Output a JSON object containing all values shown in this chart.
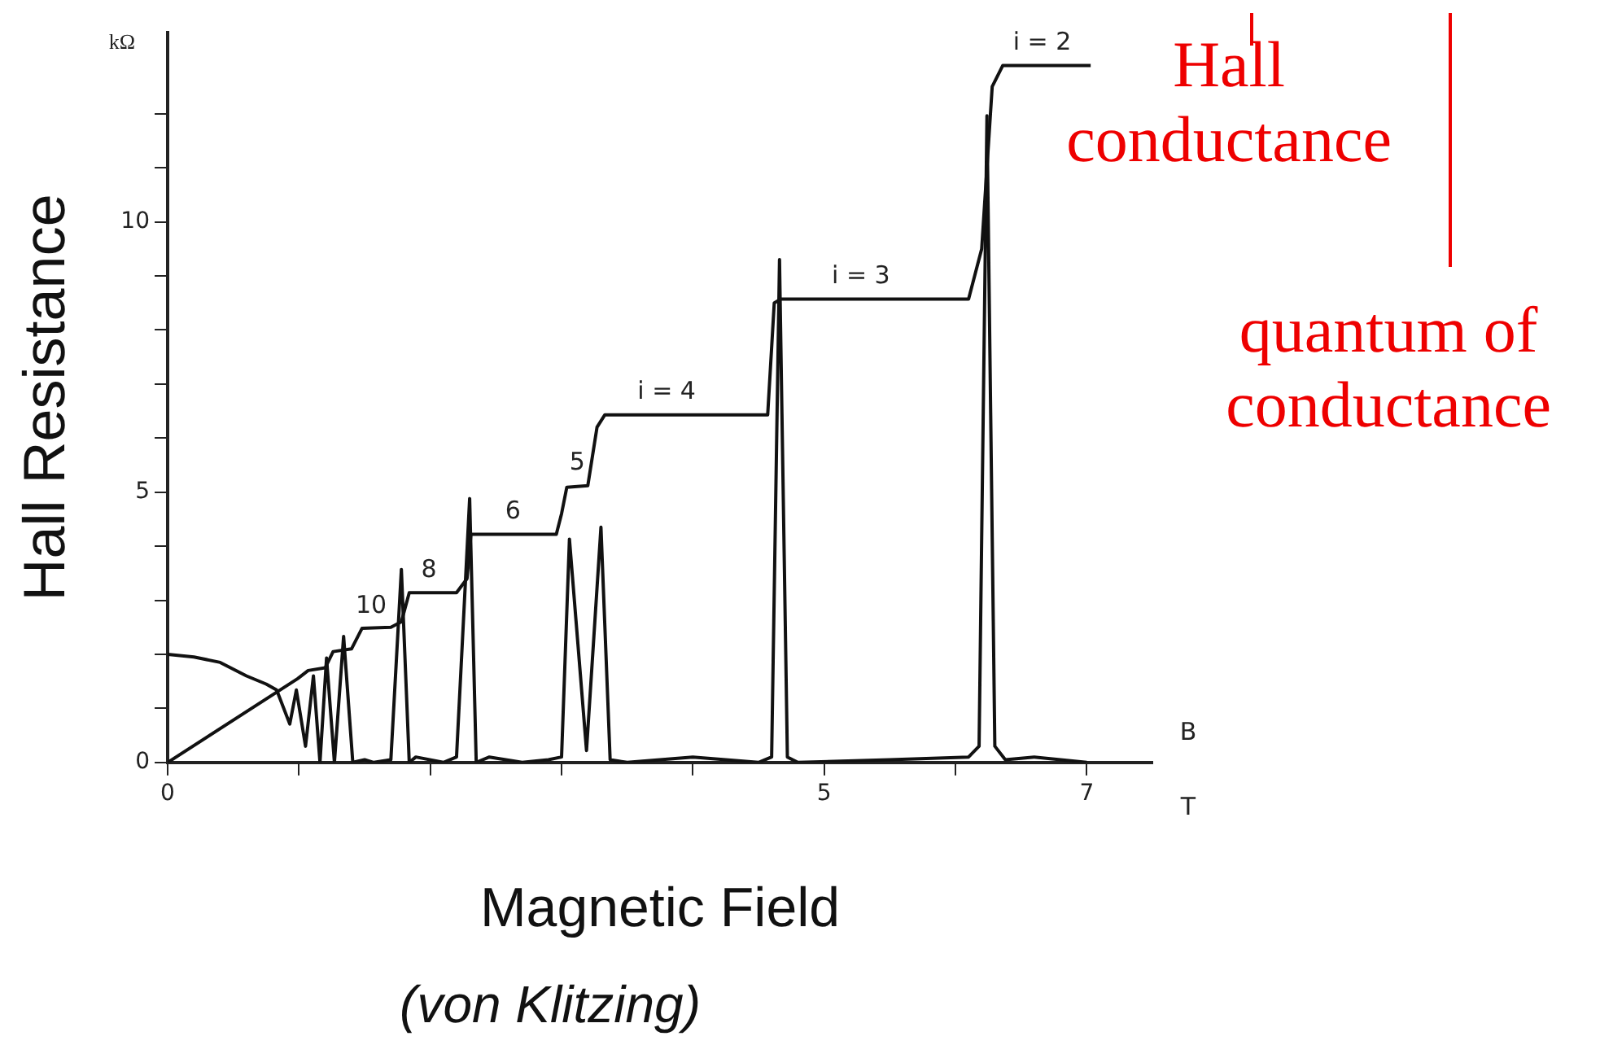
{
  "chart_data": {
    "type": "line",
    "xlabel": "Magnetic Field",
    "ylabel": "Hall Resistance",
    "xlim": [
      0,
      7.5
    ],
    "ylim": [
      0,
      13.5
    ],
    "xticks": [
      0,
      {
        "value": 1,
        "label": null
      },
      {
        "value": 2,
        "label": null
      },
      {
        "value": 3,
        "label": null
      },
      {
        "value": 4,
        "label": null
      },
      5,
      {
        "value": 6,
        "label": null
      },
      7
    ],
    "yticks": [
      0,
      {
        "value": 1,
        "label": null
      },
      {
        "value": 2,
        "label": null
      },
      {
        "value": 3,
        "label": null
      },
      {
        "value": 4,
        "label": null
      },
      5,
      {
        "value": 6,
        "label": null
      },
      {
        "value": 7,
        "label": null
      },
      {
        "value": 8,
        "label": null
      },
      {
        "value": 9,
        "label": null
      },
      10,
      {
        "value": 11,
        "label": null
      },
      {
        "value": 12,
        "label": null
      }
    ],
    "grid": false,
    "legend": false,
    "marker": "none",
    "line_style": "solid",
    "series": [
      {
        "color": "#111111",
        "x": [
          0,
          0.99,
          1.07,
          1.2,
          1.26,
          1.4,
          1.48,
          1.7,
          1.78,
          1.84,
          2.2,
          2.28,
          2.31,
          2.96,
          3.0,
          3.04,
          3.2,
          3.27,
          3.33,
          4.57,
          4.62,
          4.67,
          6.1,
          6.2,
          6.28,
          6.36,
          7.03
        ],
        "values": [
          0,
          1.55,
          1.7,
          1.75,
          2.05,
          2.1,
          2.48,
          2.5,
          2.6,
          3.14,
          3.14,
          3.4,
          4.22,
          4.22,
          4.6,
          5.09,
          5.12,
          6.2,
          6.43,
          6.43,
          8.5,
          8.57,
          8.57,
          9.5,
          12.5,
          12.89,
          12.89
        ]
      },
      {
        "color": "#111111",
        "x": [
          0,
          0.2,
          0.4,
          0.6,
          0.75,
          0.83,
          0.93,
          0.98,
          1.05,
          1.11,
          1.16,
          1.21,
          1.27,
          1.34,
          1.41,
          1.5,
          1.57,
          1.7,
          1.78,
          1.84,
          1.89,
          2.1,
          2.2,
          2.3,
          2.35,
          2.45,
          2.7,
          2.9,
          3.0,
          3.06,
          3.19,
          3.3,
          3.37,
          3.5,
          4.0,
          4.5,
          4.6,
          4.66,
          4.72,
          4.8,
          5.5,
          6.1,
          6.18,
          6.24,
          6.3,
          6.38,
          6.6,
          7.0
        ],
        "values": [
          2.0,
          1.95,
          1.85,
          1.6,
          1.45,
          1.34,
          0.71,
          1.34,
          0.3,
          1.6,
          0,
          1.93,
          0,
          2.33,
          0,
          0.05,
          0,
          0.05,
          3.57,
          0,
          0.1,
          0,
          0.1,
          4.88,
          0,
          0.1,
          0,
          0.05,
          0.1,
          4.13,
          0.22,
          4.35,
          0.05,
          0,
          0.1,
          0,
          0.1,
          9.3,
          0.1,
          0,
          0.05,
          0.1,
          0.3,
          11.96,
          0.3,
          0.05,
          0.1,
          0
        ]
      }
    ],
    "annotations": [
      {
        "text": "10",
        "x": 1.55,
        "y": 2.48
      },
      {
        "text": "8",
        "x": 1.99,
        "y": 3.14
      },
      {
        "text": "6",
        "x": 2.63,
        "y": 4.22
      },
      {
        "text": "5",
        "x": 3.12,
        "y": 5.12
      },
      {
        "text": "i = 4",
        "x": 3.8,
        "y": 6.43
      },
      {
        "text": "i = 3",
        "x": 5.28,
        "y": 8.57
      },
      {
        "text": "i = 2",
        "x": 6.66,
        "y": 12.89
      },
      "kΩ",
      "B",
      "T",
      "Hall conductance",
      "quantum of conductance",
      "(von Klitzing)"
    ]
  }
}
